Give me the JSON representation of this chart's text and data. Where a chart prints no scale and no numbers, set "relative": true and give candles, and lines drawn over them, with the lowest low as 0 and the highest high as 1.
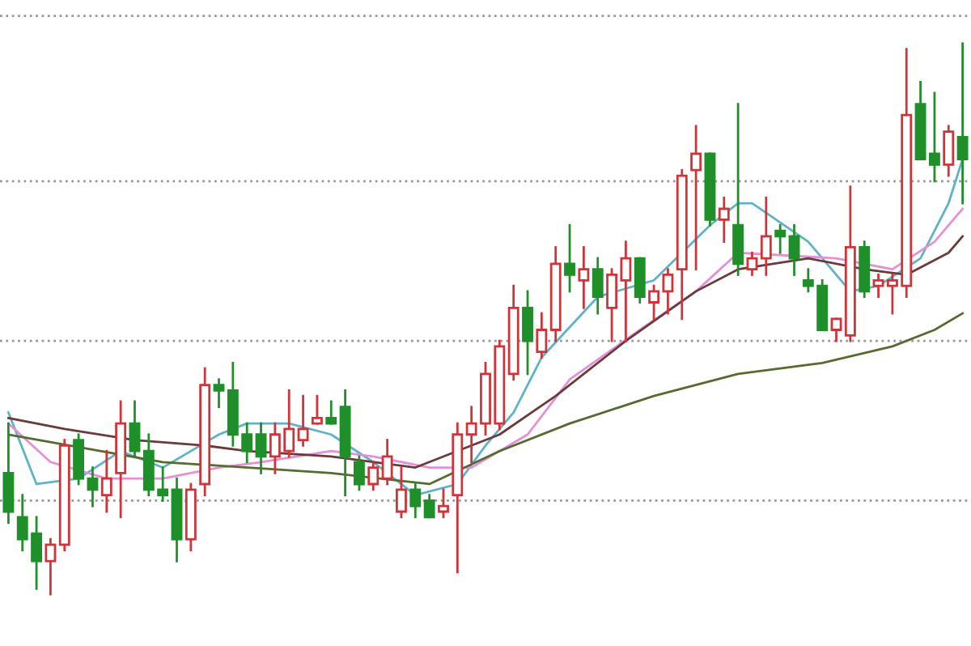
{
  "chart_data": {
    "type": "candlestick",
    "relative": true,
    "grid": false,
    "categories": [
      null,
      null,
      null,
      null,
      null,
      null,
      null,
      null,
      null,
      null,
      null,
      null,
      null,
      null,
      null,
      null,
      null,
      null,
      null,
      null,
      null,
      null,
      null,
      null,
      null,
      null,
      null,
      null,
      null,
      null,
      null,
      null,
      null,
      null,
      null,
      null,
      null,
      null,
      null,
      null,
      null,
      null,
      null,
      null,
      null,
      null,
      null,
      null,
      null,
      null,
      null,
      null,
      null,
      null,
      null,
      null,
      null,
      null,
      null,
      null,
      null,
      null,
      null,
      null,
      null,
      null,
      null,
      null,
      null
    ],
    "ohlc": [
      [
        0.22,
        0.31,
        0.13,
        0.15
      ],
      [
        0.14,
        0.18,
        0.08,
        0.1
      ],
      [
        0.11,
        0.14,
        0.01,
        0.06
      ],
      [
        0.06,
        0.1,
        0.0,
        0.09
      ],
      [
        0.09,
        0.28,
        0.08,
        0.27
      ],
      [
        0.28,
        0.29,
        0.2,
        0.21
      ],
      [
        0.21,
        0.23,
        0.16,
        0.19
      ],
      [
        0.18,
        0.26,
        0.15,
        0.21
      ],
      [
        0.22,
        0.35,
        0.14,
        0.31
      ],
      [
        0.31,
        0.35,
        0.25,
        0.26
      ],
      [
        0.26,
        0.29,
        0.18,
        0.19
      ],
      [
        0.19,
        0.23,
        0.17,
        0.18
      ],
      [
        0.19,
        0.21,
        0.06,
        0.1
      ],
      [
        0.1,
        0.2,
        0.08,
        0.19
      ],
      [
        0.2,
        0.41,
        0.18,
        0.38
      ],
      [
        0.38,
        0.39,
        0.34,
        0.37
      ],
      [
        0.37,
        0.42,
        0.27,
        0.29
      ],
      [
        0.29,
        0.31,
        0.24,
        0.26
      ],
      [
        0.29,
        0.31,
        0.22,
        0.25
      ],
      [
        0.25,
        0.31,
        0.22,
        0.29
      ],
      [
        0.26,
        0.37,
        0.25,
        0.3
      ],
      [
        0.28,
        0.36,
        0.27,
        0.3
      ],
      [
        0.31,
        0.36,
        0.31,
        0.32
      ],
      [
        0.32,
        0.35,
        0.31,
        0.31
      ],
      [
        0.34,
        0.37,
        0.18,
        0.25
      ],
      [
        0.24,
        0.25,
        0.19,
        0.2
      ],
      [
        0.2,
        0.24,
        0.19,
        0.23
      ],
      [
        0.21,
        0.28,
        0.2,
        0.25
      ],
      [
        0.15,
        0.23,
        0.14,
        0.19
      ],
      [
        0.19,
        0.2,
        0.14,
        0.16
      ],
      [
        0.17,
        0.18,
        0.14,
        0.14
      ],
      [
        0.15,
        0.19,
        0.14,
        0.16
      ],
      [
        0.18,
        0.31,
        0.04,
        0.29
      ],
      [
        0.29,
        0.34,
        0.24,
        0.31
      ],
      [
        0.31,
        0.42,
        0.29,
        0.4
      ],
      [
        0.31,
        0.46,
        0.3,
        0.45
      ],
      [
        0.4,
        0.56,
        0.39,
        0.52
      ],
      [
        0.52,
        0.55,
        0.4,
        0.46
      ],
      [
        0.44,
        0.51,
        0.43,
        0.48
      ],
      [
        0.48,
        0.63,
        0.46,
        0.6
      ],
      [
        0.6,
        0.67,
        0.55,
        0.58
      ],
      [
        0.57,
        0.63,
        0.52,
        0.59
      ],
      [
        0.59,
        0.61,
        0.51,
        0.54
      ],
      [
        0.52,
        0.59,
        0.46,
        0.58
      ],
      [
        0.57,
        0.64,
        0.46,
        0.61
      ],
      [
        0.61,
        0.61,
        0.53,
        0.54
      ],
      [
        0.53,
        0.56,
        0.5,
        0.55
      ],
      [
        0.55,
        0.59,
        0.51,
        0.58
      ],
      [
        0.59,
        0.77,
        0.5,
        0.76
      ],
      [
        0.77,
        0.85,
        0.59,
        0.8
      ],
      [
        0.8,
        0.8,
        0.67,
        0.68
      ],
      [
        0.68,
        0.72,
        0.64,
        0.7
      ],
      [
        0.67,
        0.89,
        0.58,
        0.6
      ],
      [
        0.59,
        0.62,
        0.58,
        0.61
      ],
      [
        0.61,
        0.72,
        0.58,
        0.65
      ],
      [
        0.66,
        0.67,
        0.62,
        0.65
      ],
      [
        0.65,
        0.67,
        0.58,
        0.61
      ],
      [
        0.57,
        0.59,
        0.55,
        0.56
      ],
      [
        0.56,
        0.57,
        0.48,
        0.48
      ],
      [
        0.48,
        0.5,
        0.46,
        0.5
      ],
      [
        0.47,
        0.74,
        0.46,
        0.63
      ],
      [
        0.63,
        0.64,
        0.54,
        0.55
      ],
      [
        0.56,
        0.58,
        0.54,
        0.57
      ],
      [
        0.56,
        0.58,
        0.51,
        0.57
      ],
      [
        0.56,
        0.99,
        0.54,
        0.87
      ],
      [
        0.89,
        0.93,
        0.79,
        0.79
      ],
      [
        0.8,
        0.91,
        0.75,
        0.78
      ],
      [
        0.78,
        0.85,
        0.76,
        0.84
      ],
      [
        0.83,
        1.0,
        0.71,
        0.79
      ]
    ],
    "colors": [
      "#1f8f2a",
      "#1f8f2a",
      "#1f8f2a",
      "#d0343a",
      "#d0343a",
      "#1f8f2a",
      "#1f8f2a",
      "#d0343a",
      "#d0343a",
      "#1f8f2a",
      "#1f8f2a",
      "#1f8f2a",
      "#1f8f2a",
      "#d0343a",
      "#d0343a",
      "#1f8f2a",
      "#1f8f2a",
      "#1f8f2a",
      "#1f8f2a",
      "#d0343a",
      "#d0343a",
      "#d0343a",
      "#d0343a",
      "#1f8f2a",
      "#1f8f2a",
      "#1f8f2a",
      "#d0343a",
      "#d0343a",
      "#d0343a",
      "#1f8f2a",
      "#1f8f2a",
      "#d0343a",
      "#d0343a",
      "#d0343a",
      "#d0343a",
      "#d0343a",
      "#d0343a",
      "#1f8f2a",
      "#d0343a",
      "#d0343a",
      "#1f8f2a",
      "#d0343a",
      "#1f8f2a",
      "#d0343a",
      "#d0343a",
      "#1f8f2a",
      "#d0343a",
      "#d0343a",
      "#d0343a",
      "#d0343a",
      "#1f8f2a",
      "#d0343a",
      "#1f8f2a",
      "#d0343a",
      "#d0343a",
      "#1f8f2a",
      "#1f8f2a",
      "#1f8f2a",
      "#1f8f2a",
      "#d0343a",
      "#d0343a",
      "#1f8f2a",
      "#d0343a",
      "#d0343a",
      "#d0343a",
      "#1f8f2a",
      "#1f8f2a",
      "#d0343a",
      "#1f8f2a"
    ],
    "series": [
      {
        "type": "line",
        "color": "#5fb3c8",
        "values": [
          0.33,
          null,
          0.2,
          null,
          null,
          0.21,
          null,
          null,
          0.26,
          null,
          null,
          0.23,
          null,
          null,
          null,
          0.29,
          null,
          0.31,
          null,
          null,
          0.31,
          null,
          null,
          0.29,
          null,
          null,
          0.24,
          null,
          null,
          0.18,
          null,
          null,
          0.2,
          null,
          0.27,
          null,
          0.33,
          null,
          0.43,
          null,
          null,
          null,
          0.54,
          null,
          null,
          null,
          0.57,
          null,
          null,
          null,
          0.67,
          null,
          0.71,
          0.71,
          null,
          null,
          null,
          0.64,
          null,
          null,
          0.55,
          null,
          0.56,
          null,
          null,
          0.61,
          null,
          0.71,
          0.79
        ]
      },
      {
        "type": "line",
        "color": "#e58fd6",
        "values": [
          0.31,
          null,
          null,
          0.24,
          null,
          null,
          null,
          0.21,
          null,
          null,
          null,
          0.21,
          null,
          null,
          null,
          0.23,
          null,
          null,
          0.24,
          null,
          null,
          null,
          null,
          0.26,
          null,
          null,
          0.25,
          null,
          null,
          null,
          0.23,
          null,
          null,
          0.23,
          null,
          null,
          null,
          0.29,
          null,
          null,
          0.39,
          null,
          null,
          null,
          null,
          0.48,
          null,
          null,
          null,
          0.55,
          null,
          null,
          0.62,
          null,
          null,
          null,
          null,
          null,
          null,
          0.61,
          null,
          null,
          null,
          0.59,
          null,
          null,
          0.64,
          null,
          0.7
        ]
      },
      {
        "type": "line",
        "color": "#6b3a3a",
        "values": [
          0.32,
          null,
          null,
          null,
          0.3,
          null,
          null,
          null,
          null,
          0.28,
          null,
          null,
          null,
          null,
          0.27,
          null,
          null,
          0.26,
          null,
          null,
          null,
          null,
          null,
          0.25,
          null,
          null,
          null,
          null,
          null,
          0.23,
          null,
          null,
          null,
          null,
          null,
          0.29,
          null,
          null,
          null,
          0.36,
          null,
          null,
          null,
          null,
          0.46,
          null,
          null,
          null,
          null,
          0.55,
          null,
          null,
          0.59,
          null,
          null,
          null,
          null,
          0.61,
          null,
          null,
          null,
          0.59,
          null,
          null,
          0.58,
          null,
          null,
          0.62,
          0.65
        ]
      },
      {
        "type": "line",
        "color": "#556b2f",
        "values": [
          0.29,
          null,
          null,
          null,
          null,
          null,
          null,
          null,
          null,
          null,
          null,
          0.24,
          null,
          null,
          null,
          null,
          null,
          null,
          null,
          null,
          null,
          null,
          null,
          0.22,
          null,
          null,
          null,
          null,
          null,
          null,
          0.2,
          null,
          null,
          null,
          null,
          0.26,
          null,
          null,
          null,
          null,
          0.31,
          null,
          null,
          null,
          null,
          null,
          0.36,
          null,
          null,
          null,
          null,
          null,
          0.4,
          null,
          null,
          null,
          null,
          null,
          0.42,
          null,
          null,
          null,
          null,
          0.45,
          null,
          null,
          0.48,
          null,
          0.51
        ]
      }
    ],
    "ref_lines": [
      {
        "axis": "y",
        "value": 1.05,
        "color": "#999999",
        "line_style": "dotted"
      },
      {
        "axis": "y",
        "value": 0.75,
        "color": "#999999",
        "line_style": "dotted"
      },
      {
        "axis": "y",
        "value": 0.46,
        "color": "#999999",
        "line_style": "dotted"
      },
      {
        "axis": "y",
        "value": 0.17,
        "color": "#999999",
        "line_style": "dotted"
      }
    ]
  }
}
